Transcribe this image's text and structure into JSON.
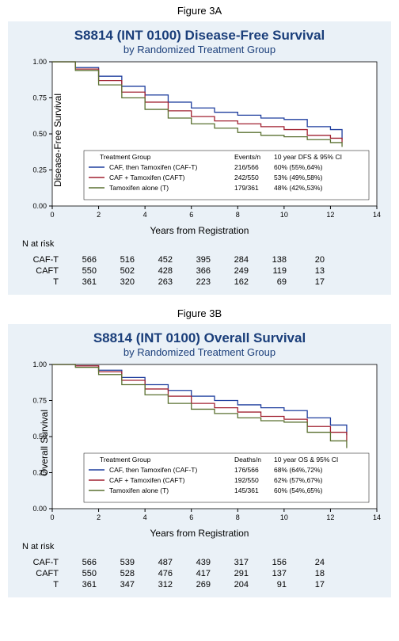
{
  "figures": [
    {
      "label": "Figure 3A",
      "title": "S8814 (INT 0100) Disease-Free Survival",
      "subtitle": "by Randomized Treatment Group",
      "ylab": "Disease-Free Survival",
      "xlab": "Years from Registration",
      "legend_header_left": "Treatment Group",
      "legend_header_mid": "Events/n",
      "legend_header_right": "10 year DFS & 95% CI",
      "style": {
        "bg": "#eaf1f7",
        "plot_bg": "#ffffff",
        "axis_color": "#000000",
        "grid_color": "#d9e2ec",
        "title_color": "#1a3e7a",
        "font_axis": 9,
        "font_legend": 8.5,
        "font_tick": 9,
        "xlim": [
          0,
          14
        ],
        "ylim": [
          0,
          1
        ],
        "xticks": [
          0,
          2,
          4,
          6,
          8,
          10,
          12,
          14
        ],
        "yticks": [
          0,
          0.25,
          0.5,
          0.75,
          1.0
        ],
        "ytick_labels": [
          "0.00",
          "0.25",
          "0.50",
          "0.75",
          "1.00"
        ],
        "line_width": 1.3
      },
      "series": [
        {
          "name": "CAF, then Tamoxifen (CAF-T)",
          "color": "#1f3e9e",
          "events": "216/566",
          "tenyr": "60% (55%,64%)",
          "points": [
            [
              0,
              1.0
            ],
            [
              1,
              0.96
            ],
            [
              2,
              0.9
            ],
            [
              3,
              0.83
            ],
            [
              4,
              0.77
            ],
            [
              5,
              0.72
            ],
            [
              6,
              0.68
            ],
            [
              7,
              0.65
            ],
            [
              8,
              0.63
            ],
            [
              9,
              0.61
            ],
            [
              10,
              0.6
            ],
            [
              11,
              0.55
            ],
            [
              12,
              0.53
            ],
            [
              12.5,
              0.46
            ]
          ]
        },
        {
          "name": "CAF + Tamoxifen (CAFT)",
          "color": "#a02030",
          "events": "242/550",
          "tenyr": "53% (49%,58%)",
          "points": [
            [
              0,
              1.0
            ],
            [
              1,
              0.95
            ],
            [
              2,
              0.87
            ],
            [
              3,
              0.79
            ],
            [
              4,
              0.72
            ],
            [
              5,
              0.66
            ],
            [
              6,
              0.62
            ],
            [
              7,
              0.59
            ],
            [
              8,
              0.57
            ],
            [
              9,
              0.55
            ],
            [
              10,
              0.53
            ],
            [
              11,
              0.49
            ],
            [
              12,
              0.47
            ],
            [
              12.5,
              0.44
            ]
          ]
        },
        {
          "name": "Tamoxifen alone  (T)",
          "color": "#5a7030",
          "events": "179/361",
          "tenyr": "48% (42%,53%)",
          "points": [
            [
              0,
              1.0
            ],
            [
              1,
              0.94
            ],
            [
              2,
              0.84
            ],
            [
              3,
              0.75
            ],
            [
              4,
              0.67
            ],
            [
              5,
              0.61
            ],
            [
              6,
              0.57
            ],
            [
              7,
              0.54
            ],
            [
              8,
              0.51
            ],
            [
              9,
              0.49
            ],
            [
              10,
              0.48
            ],
            [
              11,
              0.46
            ],
            [
              12,
              0.44
            ],
            [
              12.5,
              0.41
            ]
          ]
        }
      ],
      "risk_label": "N at risk",
      "risk_rows": [
        {
          "lab": "CAF-T",
          "cells": [
            "566",
            "516",
            "452",
            "395",
            "284",
            "138",
            "20"
          ]
        },
        {
          "lab": "CAFT",
          "cells": [
            "550",
            "502",
            "428",
            "366",
            "249",
            "119",
            "13"
          ]
        },
        {
          "lab": "T",
          "cells": [
            "361",
            "320",
            "263",
            "223",
            "162",
            "69",
            "17"
          ]
        }
      ]
    },
    {
      "label": "Figure 3B",
      "title": "S8814 (INT 0100) Overall Survival",
      "subtitle": "by Randomized Treatment Group",
      "ylab": "Overall Survival",
      "xlab": "Years from Registration",
      "legend_header_left": "Treatment Group",
      "legend_header_mid": "Deaths/n",
      "legend_header_right": "10 year OS & 95% CI",
      "style": {
        "bg": "#eaf1f7",
        "plot_bg": "#ffffff",
        "axis_color": "#000000",
        "grid_color": "#d9e2ec",
        "title_color": "#1a3e7a",
        "font_axis": 9,
        "font_legend": 8.5,
        "font_tick": 9,
        "xlim": [
          0,
          14
        ],
        "ylim": [
          0,
          1
        ],
        "xticks": [
          0,
          2,
          4,
          6,
          8,
          10,
          12,
          14
        ],
        "yticks": [
          0,
          0.25,
          0.5,
          0.75,
          1.0
        ],
        "ytick_labels": [
          "0.00",
          "0.25",
          "0.50",
          "0.75",
          "1.00"
        ],
        "line_width": 1.3
      },
      "series": [
        {
          "name": "CAF, then Tamoxifen (CAF-T)",
          "color": "#1f3e9e",
          "events": "176/566",
          "tenyr": "68% (64%,72%)",
          "points": [
            [
              0,
              1.0
            ],
            [
              1,
              0.99
            ],
            [
              2,
              0.96
            ],
            [
              3,
              0.91
            ],
            [
              4,
              0.86
            ],
            [
              5,
              0.82
            ],
            [
              6,
              0.78
            ],
            [
              7,
              0.75
            ],
            [
              8,
              0.72
            ],
            [
              9,
              0.7
            ],
            [
              10,
              0.68
            ],
            [
              11,
              0.63
            ],
            [
              12,
              0.58
            ],
            [
              12.7,
              0.51
            ]
          ]
        },
        {
          "name": "CAF + Tamoxifen (CAFT)",
          "color": "#a02030",
          "events": "192/550",
          "tenyr": "62% (57%,67%)",
          "points": [
            [
              0,
              1.0
            ],
            [
              1,
              0.99
            ],
            [
              2,
              0.95
            ],
            [
              3,
              0.89
            ],
            [
              4,
              0.83
            ],
            [
              5,
              0.78
            ],
            [
              6,
              0.73
            ],
            [
              7,
              0.7
            ],
            [
              8,
              0.67
            ],
            [
              9,
              0.64
            ],
            [
              10,
              0.62
            ],
            [
              11,
              0.57
            ],
            [
              12,
              0.53
            ],
            [
              12.7,
              0.47
            ]
          ]
        },
        {
          "name": "Tamoxifen alone  (T)",
          "color": "#5a7030",
          "events": "145/361",
          "tenyr": "60% (54%,65%)",
          "points": [
            [
              0,
              1.0
            ],
            [
              1,
              0.98
            ],
            [
              2,
              0.93
            ],
            [
              3,
              0.86
            ],
            [
              4,
              0.79
            ],
            [
              5,
              0.73
            ],
            [
              6,
              0.69
            ],
            [
              7,
              0.66
            ],
            [
              8,
              0.63
            ],
            [
              9,
              0.61
            ],
            [
              10,
              0.6
            ],
            [
              11,
              0.53
            ],
            [
              12,
              0.47
            ],
            [
              12.7,
              0.42
            ]
          ]
        }
      ],
      "risk_label": "N at risk",
      "risk_rows": [
        {
          "lab": "CAF-T",
          "cells": [
            "566",
            "539",
            "487",
            "439",
            "317",
            "156",
            "24"
          ]
        },
        {
          "lab": "CAFT",
          "cells": [
            "550",
            "528",
            "476",
            "417",
            "291",
            "137",
            "18"
          ]
        },
        {
          "lab": "T",
          "cells": [
            "361",
            "347",
            "312",
            "269",
            "204",
            "91",
            "17"
          ]
        }
      ]
    }
  ]
}
